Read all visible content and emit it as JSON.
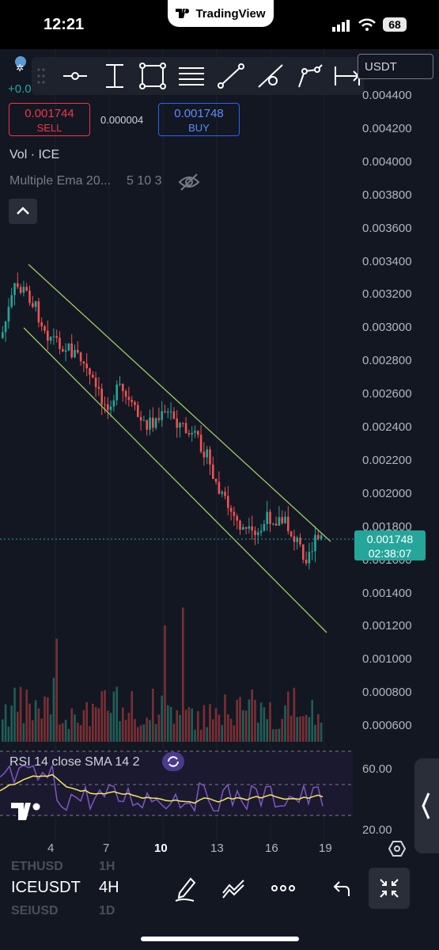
{
  "status_bar": {
    "time": "12:21",
    "battery": "68",
    "app_badge": "TradingView"
  },
  "toolbar": {
    "symbol_partial": "USDT",
    "change_partial": "+0.0",
    "tools": [
      "horizontal-line-icon",
      "vertical-line-icon",
      "rectangle-icon",
      "fib-lines-icon",
      "trend-line-icon",
      "ray-icon",
      "path-icon",
      "range-icon"
    ]
  },
  "trade": {
    "sell_price": "0.001744",
    "sell_label": "SELL",
    "buy_price": "0.001748",
    "buy_label": "BUY",
    "spread": "0.000004"
  },
  "indicators": {
    "volume": "Vol · ICE",
    "ema_name": "Multiple Ema 20...",
    "ema_params": "5 10 3",
    "rsi": "RSI 14 close SMA 14 2"
  },
  "price_axis": [
    "0.004400",
    "0.004200",
    "0.004000",
    "0.003800",
    "0.003600",
    "0.003400",
    "0.003200",
    "0.003000",
    "0.002800",
    "0.002600",
    "0.002400",
    "0.002200",
    "0.002000",
    "0.001800",
    "0.001600",
    "0.001400",
    "0.001200",
    "0.001000",
    "0.000800",
    "0.000600"
  ],
  "last_price": {
    "price": "0.001748",
    "countdown": "02:38:07"
  },
  "rsi_axis": {
    "upper": "60.00",
    "lower": "20.00"
  },
  "time_axis": [
    "4",
    "7",
    "10",
    "13",
    "16",
    "19"
  ],
  "bottom": {
    "symbol": "ICEUSDT",
    "interval": "4H",
    "prev_symbol": "ETHUSD",
    "prev_interval": "1H",
    "next_symbol": "SEIUSD",
    "next_interval": "1D"
  },
  "colors": {
    "up": "#26a69a",
    "down": "#ef5350",
    "channel": "#9ccc65",
    "rsi": "#7e57c2",
    "rsi_sma": "#f5e663"
  }
}
